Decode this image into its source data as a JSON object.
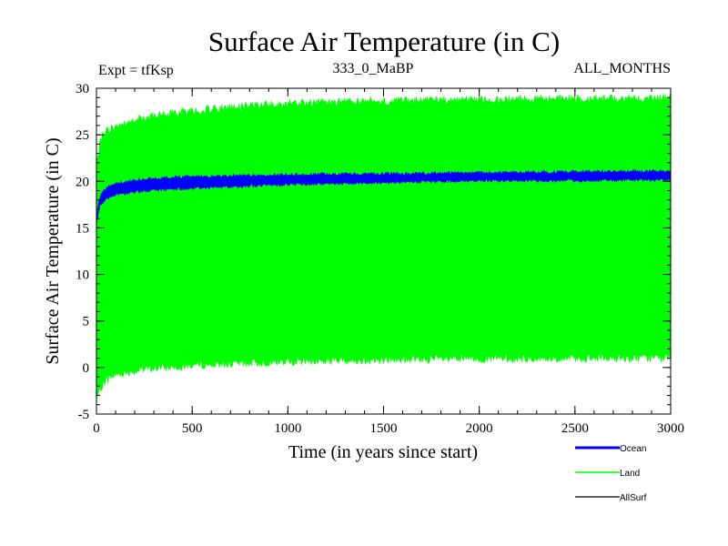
{
  "chart_data": {
    "type": "area",
    "title": "Surface Air Temperature (in C)",
    "subtitle_left": "Expt = tfKsp",
    "subtitle_center": "333_0_MaBP",
    "subtitle_right": "ALL_MONTHS",
    "xlabel": "Time (in years since start)",
    "ylabel": "Surface Air Temperature (in C)",
    "xlim": [
      0,
      3000
    ],
    "ylim": [
      -5,
      30
    ],
    "x_ticks": [
      0,
      500,
      1000,
      1500,
      2000,
      2500,
      3000
    ],
    "y_ticks": [
      -5,
      0,
      5,
      10,
      15,
      20,
      25,
      30
    ],
    "legend_position": "bottom-right",
    "series": [
      {
        "name": "Land",
        "color": "#00ff00",
        "x": [
          0,
          25,
          50,
          100,
          200,
          300,
          500,
          750,
          1000,
          1500,
          2000,
          2500,
          3000
        ],
        "upper": [
          22.5,
          25.2,
          25.8,
          26.3,
          27.0,
          27.5,
          28.0,
          28.5,
          28.8,
          29.1,
          29.2,
          29.3,
          29.4
        ],
        "lower": [
          -4.0,
          -2.5,
          -1.8,
          -1.2,
          -0.8,
          -0.5,
          -0.2,
          0.0,
          0.2,
          0.4,
          0.5,
          0.5,
          0.6
        ]
      },
      {
        "name": "Ocean",
        "color": "#0000ff",
        "x": [
          0,
          10,
          25,
          50,
          100,
          200,
          300,
          500,
          750,
          1000,
          1500,
          2000,
          2500,
          3000
        ],
        "upper": [
          16.0,
          17.8,
          18.8,
          19.5,
          19.9,
          20.3,
          20.5,
          20.7,
          20.8,
          20.9,
          21.0,
          21.1,
          21.2,
          21.3
        ],
        "lower": [
          15.0,
          16.6,
          17.4,
          18.0,
          18.3,
          18.7,
          18.9,
          19.1,
          19.3,
          19.5,
          19.7,
          19.9,
          19.9,
          20.0
        ]
      },
      {
        "name": "AllSurf",
        "color": "#000000"
      }
    ]
  }
}
